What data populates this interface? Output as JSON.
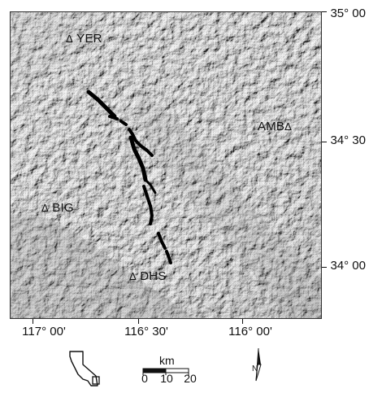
{
  "stations": {
    "yer": "YER",
    "amb": "AMB",
    "big": "BIG",
    "dhs": "DHS"
  },
  "station_symbol": "Δ",
  "latitude_labels": {
    "top": "35° 00",
    "middle": "34° 30",
    "bottom": "34° 00"
  },
  "longitude_labels": {
    "left": "117° 00'",
    "middle": "116° 30'",
    "right": "116° 00'"
  },
  "scale_bar": {
    "unit": "km",
    "ticks": [
      "0",
      "10",
      "20"
    ]
  },
  "north_symbol": "N",
  "icons": {
    "inset": "california-outline-icon",
    "north": "north-arrow-icon",
    "station": "triangle-icon"
  },
  "colors": {
    "fault_trace": "#000000",
    "relief_base": "#c9c9c9"
  }
}
